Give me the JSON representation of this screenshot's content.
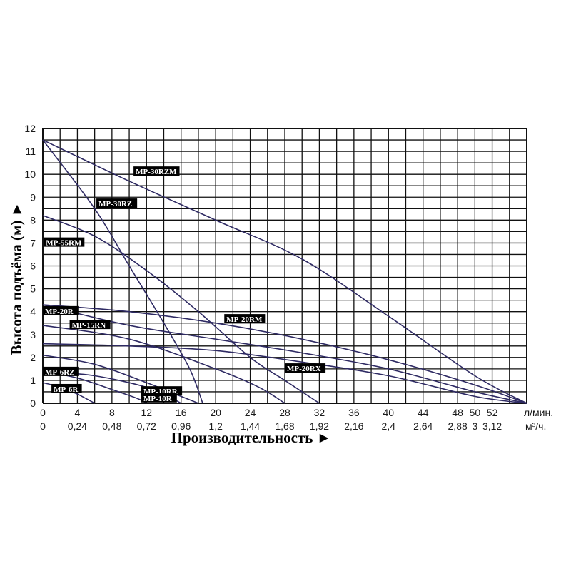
{
  "chart_data": {
    "type": "line",
    "xlabel": "Производительность ►",
    "ylabel": "Высота подъёма (м) ►",
    "x_unit": "л/мин.",
    "x2_unit": "м³/ч.",
    "xlim": [
      0,
      56
    ],
    "ylim": [
      0,
      12
    ],
    "x_ticks": [
      "0",
      "4",
      "8",
      "12",
      "16",
      "20",
      "24",
      "28",
      "32",
      "36",
      "40",
      "44",
      "48",
      "50",
      "52"
    ],
    "x2_ticks": [
      "0",
      "0,24",
      "0,48",
      "0,72",
      "0,96",
      "1,2",
      "1,44",
      "1,68",
      "1,92",
      "2,16",
      "2,4",
      "2,64",
      "2,88",
      "3",
      "3,12"
    ],
    "y_ticks": [
      "0",
      "1",
      "2",
      "3",
      "4",
      "5",
      "6",
      "7",
      "8",
      "9",
      "10",
      "11",
      "12"
    ],
    "grid": true,
    "series": [
      {
        "name": "MP-30RZM",
        "x": [
          0,
          10,
          20,
          30,
          40,
          50,
          56
        ],
        "y": [
          11.5,
          9.7,
          8,
          6.3,
          3.8,
          1.2,
          0
        ]
      },
      {
        "name": "MP-30RZ",
        "x": [
          0,
          6,
          10,
          14,
          17,
          18.5
        ],
        "y": [
          11.5,
          8.5,
          6,
          3.5,
          1.5,
          0
        ]
      },
      {
        "name": "MP-55RM",
        "x": [
          0,
          6,
          12,
          18,
          24,
          28,
          32
        ],
        "y": [
          8.2,
          7.3,
          5.8,
          4,
          2,
          1,
          0
        ]
      },
      {
        "name": "MP-20RM",
        "x": [
          0,
          10,
          20,
          30,
          40,
          50,
          56
        ],
        "y": [
          4.3,
          4,
          3.5,
          2.8,
          1.9,
          0.8,
          0
        ]
      },
      {
        "name": "MP-20R",
        "x": [
          0,
          10,
          20,
          30,
          40,
          50,
          56
        ],
        "y": [
          4.3,
          3.4,
          2.8,
          2.2,
          1.5,
          0.5,
          0
        ]
      },
      {
        "name": "MP-15RN",
        "x": [
          0,
          10,
          20,
          25,
          28
        ],
        "y": [
          3.4,
          2.8,
          1.5,
          0.7,
          0
        ]
      },
      {
        "name": "MP-20RX",
        "x": [
          0,
          10,
          20,
          30,
          40,
          50,
          56
        ],
        "y": [
          2.6,
          2.5,
          2.3,
          1.8,
          1.2,
          0.3,
          0
        ]
      },
      {
        "name": "MP-6RZ",
        "x": [
          0,
          6,
          12,
          16,
          18
        ],
        "y": [
          2.1,
          1.7,
          0.9,
          0.3,
          0
        ]
      },
      {
        "name": "MP-10RR",
        "x": [
          0,
          6,
          12,
          15,
          16
        ],
        "y": [
          1.4,
          1.2,
          0.7,
          0.2,
          0
        ]
      },
      {
        "name": "MP-10R",
        "x": [
          0,
          4,
          8,
          11,
          12
        ],
        "y": [
          1.4,
          1.1,
          0.6,
          0.2,
          0
        ]
      },
      {
        "name": "MP-6R",
        "x": [
          0,
          2,
          4,
          6
        ],
        "y": [
          0.9,
          0.7,
          0.4,
          0
        ]
      }
    ]
  }
}
